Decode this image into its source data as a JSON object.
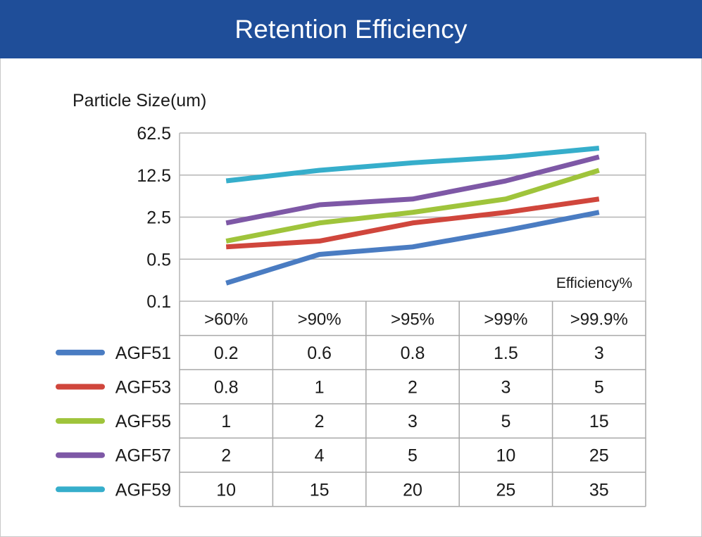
{
  "header": {
    "title": "Retention Efficiency"
  },
  "chart_data": {
    "type": "line",
    "title": "Retention Efficiency",
    "ylabel": "Particle Size(um)",
    "xlabel": "Efficiency%",
    "y_scale": "log",
    "y_ticks": [
      "0.1",
      "0.5",
      "2.5",
      "12.5",
      "62.5"
    ],
    "categories": [
      ">60%",
      ">90%",
      ">95%",
      ">99%",
      ">99.9%"
    ],
    "grid": true,
    "legend": "left of data table",
    "series": [
      {
        "name": "AGF51",
        "color": "#4a7cc2",
        "values": [
          0.2,
          0.6,
          0.8,
          1.5,
          3
        ]
      },
      {
        "name": "AGF53",
        "color": "#d0463c",
        "values": [
          0.8,
          1,
          2,
          3,
          5
        ]
      },
      {
        "name": "AGF55",
        "color": "#9fc43b",
        "values": [
          1,
          2,
          3,
          5,
          15
        ]
      },
      {
        "name": "AGF57",
        "color": "#7e58a6",
        "values": [
          2,
          4,
          5,
          10,
          25
        ]
      },
      {
        "name": "AGF59",
        "color": "#36aecb",
        "values": [
          10,
          15,
          20,
          25,
          35
        ]
      }
    ]
  }
}
